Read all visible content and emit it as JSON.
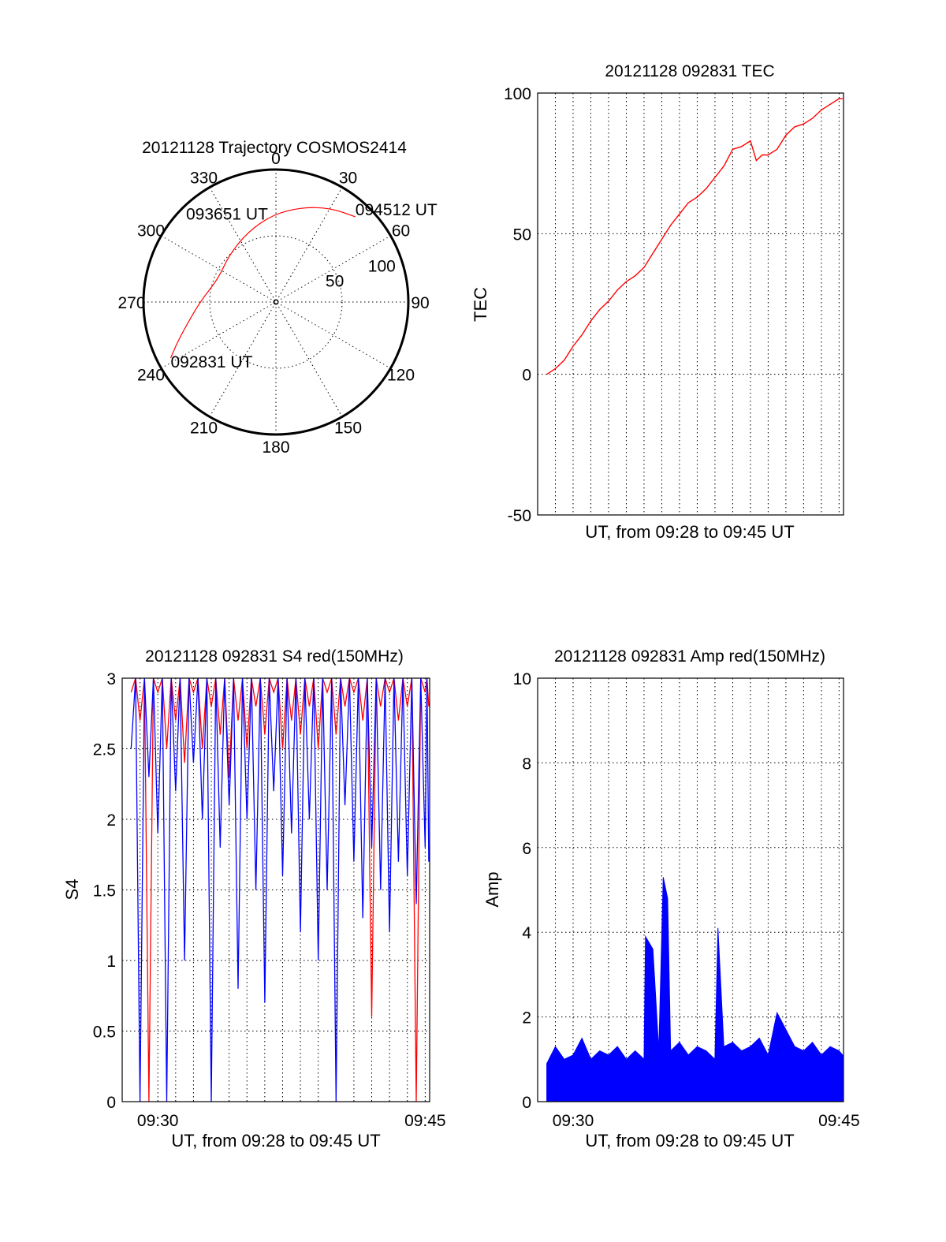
{
  "chart_data": [
    {
      "type": "polar",
      "title": "20121128 Trajectory COSMOS2414",
      "angle_labels": [
        "0",
        "30",
        "60",
        "90",
        "120",
        "150",
        "180",
        "210",
        "240",
        "270",
        "300",
        "330"
      ],
      "radial_labels": [
        "50",
        "100"
      ],
      "rlim": [
        0,
        100
      ],
      "series_color": "#ff0000",
      "trajectory": [
        {
          "az": 242,
          "r": 90
        },
        {
          "az": 248,
          "r": 80
        },
        {
          "az": 258,
          "r": 67
        },
        {
          "az": 272,
          "r": 56
        },
        {
          "az": 292,
          "r": 47
        },
        {
          "az": 315,
          "r": 50
        },
        {
          "az": 338,
          "r": 57
        },
        {
          "az": 358,
          "r": 66
        },
        {
          "az": 15,
          "r": 74
        },
        {
          "az": 30,
          "r": 82
        },
        {
          "az": 43,
          "r": 88
        }
      ],
      "annotations": [
        {
          "text": "092831 UT",
          "az": 242,
          "r": 90
        },
        {
          "text": "093651 UT",
          "az": 320,
          "r": 50
        },
        {
          "text": "094512 UT",
          "az": 43,
          "r": 88
        }
      ]
    },
    {
      "type": "line",
      "title": "20121128 092831 TEC",
      "xlabel": "UT, from 09:28 to 09:45 UT",
      "ylabel": "TEC",
      "ylim": [
        -50,
        100
      ],
      "yticks": [
        "-50",
        "0",
        "50",
        "100"
      ],
      "xlim": [
        "09:28",
        "09:45"
      ],
      "grid": true,
      "series": [
        {
          "color": "#ff0000",
          "x": [
            "09:28:31",
            "09:29:00",
            "09:29:30",
            "09:30:00",
            "09:30:30",
            "09:31:00",
            "09:31:30",
            "09:32:00",
            "09:32:30",
            "09:33:00",
            "09:33:30",
            "09:34:00",
            "09:34:30",
            "09:35:00",
            "09:35:30",
            "09:36:00",
            "09:36:30",
            "09:37:00",
            "09:37:30",
            "09:38:00",
            "09:38:30",
            "09:39:00",
            "09:39:30",
            "09:40:00",
            "09:40:20",
            "09:40:40",
            "09:41:00",
            "09:41:30",
            "09:42:00",
            "09:42:30",
            "09:43:00",
            "09:43:30",
            "09:44:00",
            "09:44:30",
            "09:45:00",
            "09:45:12"
          ],
          "y": [
            0,
            2,
            5,
            10,
            14,
            19,
            23,
            26,
            30,
            33,
            35,
            38,
            43,
            48,
            53,
            57,
            61,
            63,
            66,
            70,
            74,
            80,
            81,
            83,
            76,
            78,
            78,
            80,
            85,
            88,
            89,
            91,
            94,
            96,
            98,
            98
          ]
        }
      ]
    },
    {
      "type": "line",
      "title": "20121128 092831 S4 red(150MHz)",
      "xlabel": "UT, from 09:28 to 09:45 UT",
      "ylabel": "S4",
      "ylim": [
        0,
        3
      ],
      "yticks": [
        "0",
        "0.5",
        "1",
        "1.5",
        "2",
        "2.5",
        "3"
      ],
      "xticks": [
        "09:30",
        "09:45"
      ],
      "grid": true,
      "series": [
        {
          "color": "#ff0000",
          "x": [
            "09:28:30",
            "09:29:00",
            "09:29:30",
            "09:30:00",
            "09:30:30",
            "09:31:00",
            "09:31:30",
            "09:32:00",
            "09:32:30",
            "09:33:00",
            "09:33:30",
            "09:34:00",
            "09:34:30",
            "09:35:00",
            "09:35:30",
            "09:36:00",
            "09:36:30",
            "09:37:00",
            "09:37:30",
            "09:38:00",
            "09:38:30",
            "09:39:00",
            "09:39:30",
            "09:40:00",
            "09:40:30",
            "09:41:00",
            "09:41:30",
            "09:42:00",
            "09:42:30",
            "09:43:00",
            "09:43:30",
            "09:44:00",
            "09:44:30",
            "09:45:00",
            "09:45:12"
          ],
          "y": [
            2.9,
            2.7,
            0.0,
            2.9,
            2.5,
            2.7,
            2.4,
            2.9,
            2.5,
            2.8,
            2.6,
            2.3,
            2.7,
            2.5,
            2.8,
            2.6,
            2.9,
            2.5,
            2.7,
            2.6,
            2.8,
            2.5,
            2.9,
            2.6,
            2.8,
            2.9,
            2.7,
            0.6,
            2.8,
            2.9,
            2.7,
            2.8,
            0.0,
            2.9,
            2.8
          ]
        },
        {
          "color": "#0000ff",
          "x": [
            "09:28:30",
            "09:29:00",
            "09:29:30",
            "09:30:00",
            "09:30:30",
            "09:31:00",
            "09:31:30",
            "09:32:00",
            "09:32:30",
            "09:33:00",
            "09:33:30",
            "09:34:00",
            "09:34:30",
            "09:35:00",
            "09:35:30",
            "09:36:00",
            "09:36:30",
            "09:37:00",
            "09:37:30",
            "09:38:00",
            "09:38:30",
            "09:39:00",
            "09:39:30",
            "09:40:00",
            "09:40:30",
            "09:41:00",
            "09:41:30",
            "09:42:00",
            "09:42:30",
            "09:43:00",
            "09:43:30",
            "09:44:00",
            "09:44:30",
            "09:45:00",
            "09:45:12"
          ],
          "y": [
            2.5,
            0.0,
            2.3,
            1.9,
            0.0,
            2.2,
            1.0,
            2.4,
            2.0,
            0.0,
            1.8,
            2.1,
            0.8,
            2.0,
            1.5,
            0.7,
            2.2,
            1.6,
            1.9,
            1.2,
            2.0,
            1.0,
            1.5,
            0.0,
            2.1,
            1.7,
            1.3,
            1.8,
            1.5,
            1.2,
            1.7,
            1.6,
            1.4,
            1.8,
            1.7
          ]
        }
      ]
    },
    {
      "type": "line",
      "title": "20121128 092831 Amp red(150MHz)",
      "xlabel": "UT, from 09:28 to 09:45 UT",
      "ylabel": "Amp",
      "ylim": [
        0,
        10
      ],
      "yticks": [
        "0",
        "2",
        "4",
        "6",
        "8",
        "10"
      ],
      "xticks": [
        "09:30",
        "09:45"
      ],
      "grid": true,
      "series": [
        {
          "color": "#0000ff",
          "x": [
            "09:28:31",
            "09:29:00",
            "09:29:30",
            "09:30:00",
            "09:30:30",
            "09:31:00",
            "09:31:30",
            "09:32:00",
            "09:32:30",
            "09:33:00",
            "09:33:30",
            "09:34:00",
            "09:34:05",
            "09:34:30",
            "09:34:50",
            "09:35:05",
            "09:35:20",
            "09:35:30",
            "09:36:00",
            "09:36:30",
            "09:37:00",
            "09:37:30",
            "09:38:00",
            "09:38:10",
            "09:38:30",
            "09:39:00",
            "09:39:30",
            "09:40:00",
            "09:40:30",
            "09:41:00",
            "09:41:30",
            "09:42:00",
            "09:42:30",
            "09:43:00",
            "09:43:30",
            "09:44:00",
            "09:44:30",
            "09:45:00",
            "09:45:12"
          ],
          "y": [
            0.9,
            1.3,
            1.0,
            1.1,
            1.5,
            1.0,
            1.2,
            1.1,
            1.3,
            1.0,
            1.2,
            1.0,
            3.9,
            3.6,
            1.2,
            5.3,
            4.8,
            1.2,
            1.4,
            1.1,
            1.3,
            1.2,
            1.0,
            4.1,
            1.3,
            1.4,
            1.2,
            1.3,
            1.5,
            1.1,
            2.1,
            1.7,
            1.3,
            1.2,
            1.4,
            1.1,
            1.3,
            1.2,
            1.1
          ]
        }
      ]
    }
  ]
}
